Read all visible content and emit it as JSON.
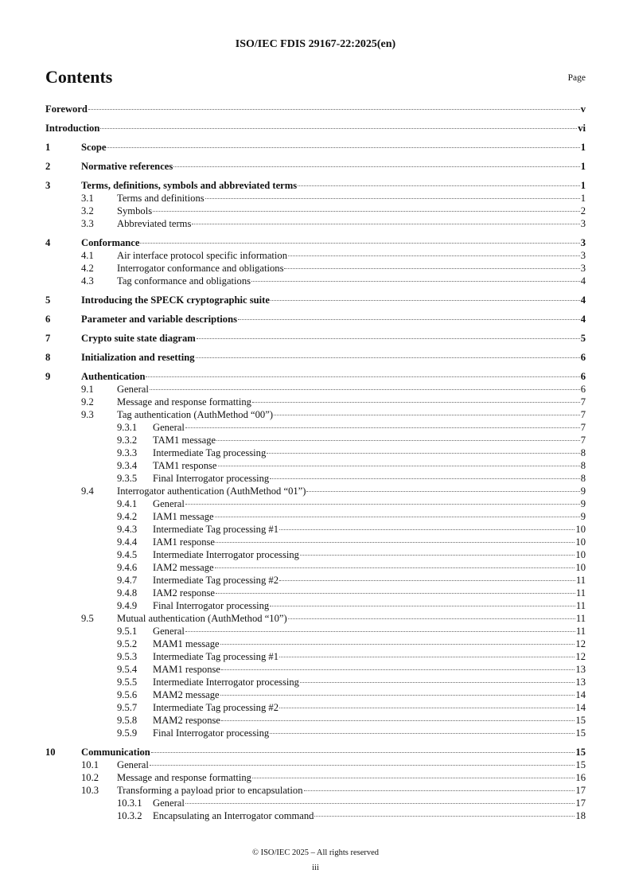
{
  "header": {
    "doc_id": "ISO/IEC FDIS 29167-22:2025(en)"
  },
  "contents_title": "Contents",
  "page_label": "Page",
  "toc": [
    {
      "level": 1,
      "num": "",
      "title": "Foreword",
      "page": "v"
    },
    {
      "level": 1,
      "num": "",
      "title": "Introduction",
      "page": "vi"
    },
    {
      "level": 1,
      "num": "1",
      "title": "Scope",
      "page": "1"
    },
    {
      "level": 1,
      "num": "2",
      "title": "Normative references",
      "page": "1"
    },
    {
      "level": 1,
      "num": "3",
      "title": "Terms, definitions, symbols and abbreviated terms",
      "page": "1"
    },
    {
      "level": 2,
      "num": "3.1",
      "title": "Terms and definitions",
      "page": "1"
    },
    {
      "level": 2,
      "num": "3.2",
      "title": "Symbols",
      "page": "2"
    },
    {
      "level": 2,
      "num": "3.3",
      "title": "Abbreviated terms",
      "page": "3"
    },
    {
      "level": 1,
      "num": "4",
      "title": "Conformance",
      "page": "3"
    },
    {
      "level": 2,
      "num": "4.1",
      "title": "Air interface protocol specific information",
      "page": "3"
    },
    {
      "level": 2,
      "num": "4.2",
      "title": "Interrogator conformance and obligations",
      "page": "3"
    },
    {
      "level": 2,
      "num": "4.3",
      "title": "Tag conformance and obligations",
      "page": "4"
    },
    {
      "level": 1,
      "num": "5",
      "title": "Introducing the SPECK cryptographic suite",
      "page": "4"
    },
    {
      "level": 1,
      "num": "6",
      "title": "Parameter and variable descriptions",
      "page": "4"
    },
    {
      "level": 1,
      "num": "7",
      "title": "Crypto suite state diagram",
      "page": "5"
    },
    {
      "level": 1,
      "num": "8",
      "title": "Initialization and resetting",
      "page": "6"
    },
    {
      "level": 1,
      "num": "9",
      "title": "Authentication",
      "page": "6"
    },
    {
      "level": 2,
      "num": "9.1",
      "title": "General",
      "page": "6"
    },
    {
      "level": 2,
      "num": "9.2",
      "title": "Message and response formatting",
      "page": "7"
    },
    {
      "level": 2,
      "num": "9.3",
      "title": "Tag authentication (AuthMethod “00”)",
      "page": "7"
    },
    {
      "level": 3,
      "num": "9.3.1",
      "title": "General",
      "page": "7"
    },
    {
      "level": 3,
      "num": "9.3.2",
      "title": "TAM1 message",
      "page": "7"
    },
    {
      "level": 3,
      "num": "9.3.3",
      "title": "Intermediate Tag processing",
      "page": "8"
    },
    {
      "level": 3,
      "num": "9.3.4",
      "title": "TAM1 response",
      "page": "8"
    },
    {
      "level": 3,
      "num": "9.3.5",
      "title": "Final Interrogator processing",
      "page": "8"
    },
    {
      "level": 2,
      "num": "9.4",
      "title": "Interrogator authentication (AuthMethod “01”)",
      "page": "9"
    },
    {
      "level": 3,
      "num": "9.4.1",
      "title": "General",
      "page": "9"
    },
    {
      "level": 3,
      "num": "9.4.2",
      "title": "IAM1 message",
      "page": "9"
    },
    {
      "level": 3,
      "num": "9.4.3",
      "title": "Intermediate Tag processing #1",
      "page": "10"
    },
    {
      "level": 3,
      "num": "9.4.4",
      "title": "IAM1 response",
      "page": "10"
    },
    {
      "level": 3,
      "num": "9.4.5",
      "title": "Intermediate Interrogator processing",
      "page": "10"
    },
    {
      "level": 3,
      "num": "9.4.6",
      "title": "IAM2 message",
      "page": "10"
    },
    {
      "level": 3,
      "num": "9.4.7",
      "title": "Intermediate Tag processing #2",
      "page": "11"
    },
    {
      "level": 3,
      "num": "9.4.8",
      "title": "IAM2 response",
      "page": "11"
    },
    {
      "level": 3,
      "num": "9.4.9",
      "title": "Final Interrogator processing",
      "page": "11"
    },
    {
      "level": 2,
      "num": "9.5",
      "title": "Mutual authentication (AuthMethod “10”)",
      "page": "11"
    },
    {
      "level": 3,
      "num": "9.5.1",
      "title": "General",
      "page": "11"
    },
    {
      "level": 3,
      "num": "9.5.2",
      "title": "MAM1 message",
      "page": "12"
    },
    {
      "level": 3,
      "num": "9.5.3",
      "title": "Intermediate Tag processing #1",
      "page": "12"
    },
    {
      "level": 3,
      "num": "9.5.4",
      "title": "MAM1 response",
      "page": "13"
    },
    {
      "level": 3,
      "num": "9.5.5",
      "title": "Intermediate Interrogator processing",
      "page": "13"
    },
    {
      "level": 3,
      "num": "9.5.6",
      "title": "MAM2 message",
      "page": "14"
    },
    {
      "level": 3,
      "num": "9.5.7",
      "title": "Intermediate Tag processing #2",
      "page": "14"
    },
    {
      "level": 3,
      "num": "9.5.8",
      "title": "MAM2 response",
      "page": "15"
    },
    {
      "level": 3,
      "num": "9.5.9",
      "title": "Final Interrogator processing",
      "page": "15"
    },
    {
      "level": 1,
      "num": "10",
      "title": "Communication",
      "page": "15"
    },
    {
      "level": 2,
      "num": "10.1",
      "title": "General",
      "page": "15"
    },
    {
      "level": 2,
      "num": "10.2",
      "title": "Message and response formatting",
      "page": "16"
    },
    {
      "level": 2,
      "num": "10.3",
      "title": "Transforming a payload prior to encapsulation",
      "page": "17"
    },
    {
      "level": 3,
      "num": "10.3.1",
      "title": "General",
      "page": "17"
    },
    {
      "level": 3,
      "num": "10.3.2",
      "title": "Encapsulating an Interrogator command",
      "page": "18"
    }
  ],
  "footer": {
    "copyright": "© ISO/IEC 2025 – All rights reserved",
    "page_number": "iii"
  }
}
